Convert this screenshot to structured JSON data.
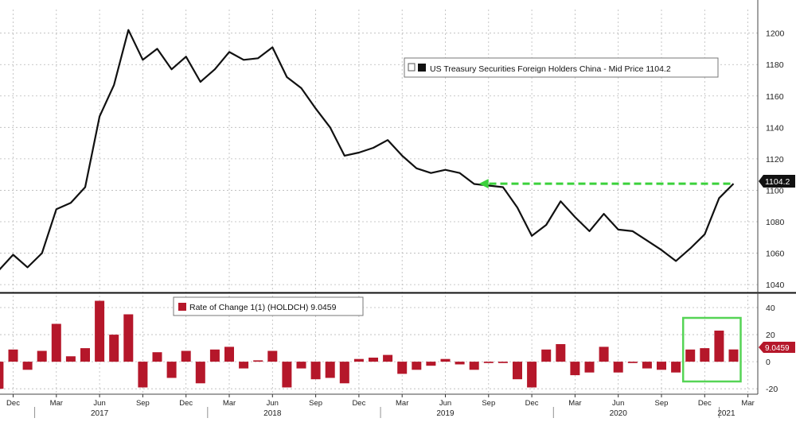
{
  "colors": {
    "line": "#111111",
    "bar": "#b5172a",
    "grid": "#b8b8b8",
    "arrow": "#3bd13b",
    "highlight_box": "#55d455",
    "last_value_bg": "#111111",
    "last_value_text": "#ffffff"
  },
  "chart_data": [
    {
      "type": "line",
      "panel": "upper",
      "legend": {
        "label": "US Treasury Securities Foreign Holders China - Mid Price 1104.2",
        "position": "top-right"
      },
      "last_value_label": "1104.2",
      "y_ticks": [
        "1040",
        "1060",
        "1080",
        "1100",
        "1120",
        "1140",
        "1160",
        "1180",
        "1200"
      ],
      "ylim": [
        1035,
        1215
      ],
      "grid": true,
      "series": [
        {
          "x": [
            "2016-11",
            "2016-12",
            "2017-01",
            "2017-02",
            "2017-03",
            "2017-04",
            "2017-05",
            "2017-06",
            "2017-07",
            "2017-08",
            "2017-09",
            "2017-10",
            "2017-11",
            "2017-12",
            "2018-01",
            "2018-02",
            "2018-03",
            "2018-04",
            "2018-05",
            "2018-06",
            "2018-07",
            "2018-08",
            "2018-09",
            "2018-10",
            "2018-11",
            "2018-12",
            "2019-01",
            "2019-02",
            "2019-03",
            "2019-04",
            "2019-05",
            "2019-06",
            "2019-07",
            "2019-08",
            "2019-09",
            "2019-10",
            "2019-11",
            "2019-12",
            "2020-01",
            "2020-02",
            "2020-03",
            "2020-04",
            "2020-05",
            "2020-06",
            "2020-07",
            "2020-08",
            "2020-09",
            "2020-10",
            "2020-11",
            "2020-12",
            "2021-01",
            "2021-02"
          ],
          "values": [
            1049,
            1059,
            1051,
            1060,
            1088,
            1092,
            1102,
            1147,
            1167,
            1202,
            1183,
            1190,
            1177,
            1185,
            1169,
            1177,
            1188,
            1183,
            1184,
            1191,
            1172,
            1165,
            1152,
            1140,
            1122,
            1124,
            1127,
            1132,
            1122,
            1114,
            1111,
            1113,
            1111,
            1104,
            1103,
            1102,
            1089,
            1071,
            1078,
            1093,
            1083,
            1074,
            1085,
            1075,
            1074,
            1068,
            1062,
            1055,
            1063,
            1072,
            1095,
            1104.2
          ]
        }
      ],
      "annotation": {
        "type": "dashed-arrow",
        "from": [
          "2021-02",
          1104.2
        ],
        "to": [
          "2019-08",
          1104.2
        ]
      }
    },
    {
      "type": "bar",
      "panel": "lower",
      "legend": {
        "label": "Rate of Change 1(1) (HOLDCH) 9.0459",
        "position": "top-left"
      },
      "last_value_label": "9.0459",
      "y_ticks": [
        "-20",
        "0",
        "20",
        "40"
      ],
      "ylim": [
        -24,
        50
      ],
      "grid": true,
      "series": [
        {
          "x": [
            "2016-11",
            "2016-12",
            "2017-01",
            "2017-02",
            "2017-03",
            "2017-04",
            "2017-05",
            "2017-06",
            "2017-07",
            "2017-08",
            "2017-09",
            "2017-10",
            "2017-11",
            "2017-12",
            "2018-01",
            "2018-02",
            "2018-03",
            "2018-04",
            "2018-05",
            "2018-06",
            "2018-07",
            "2018-08",
            "2018-09",
            "2018-10",
            "2018-11",
            "2018-12",
            "2019-01",
            "2019-02",
            "2019-03",
            "2019-04",
            "2019-05",
            "2019-06",
            "2019-07",
            "2019-08",
            "2019-09",
            "2019-10",
            "2019-11",
            "2019-12",
            "2020-01",
            "2020-02",
            "2020-03",
            "2020-04",
            "2020-05",
            "2020-06",
            "2020-07",
            "2020-08",
            "2020-09",
            "2020-10",
            "2020-11",
            "2020-12",
            "2021-01",
            "2021-02"
          ],
          "values": [
            -20,
            9,
            -6,
            8,
            28,
            4,
            10,
            45,
            20,
            35,
            -19,
            7,
            -12,
            8,
            -16,
            9,
            11,
            -5,
            1,
            8,
            -19,
            -5,
            -13,
            -12,
            -16,
            2,
            3,
            5,
            -9,
            -6,
            -3,
            2,
            -2,
            -6,
            -1,
            -1,
            -13,
            -19,
            9,
            13,
            -10,
            -8,
            11,
            -8,
            -1,
            -5,
            -6,
            -8,
            9,
            10,
            23,
            9.0459
          ]
        }
      ],
      "highlight": {
        "from": "2020-11",
        "to": "2021-02"
      }
    }
  ],
  "x_axis": {
    "month_labels": [
      "Dec",
      "Mar",
      "Jun",
      "Sep",
      "Dec",
      "Mar",
      "Jun",
      "Sep",
      "Dec",
      "Mar",
      "Jun",
      "Sep",
      "Dec",
      "Mar",
      "Jun",
      "Sep",
      "Dec",
      "Mar"
    ],
    "year_labels": [
      "2017",
      "2018",
      "2019",
      "2020",
      "2021"
    ]
  }
}
